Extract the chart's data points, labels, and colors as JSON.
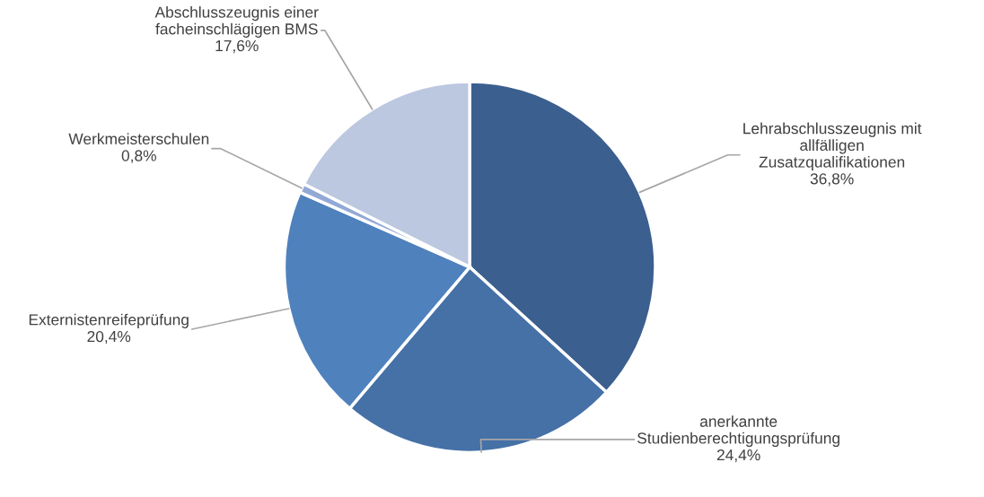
{
  "chart_data": {
    "type": "pie",
    "categories": [
      "Lehrabschlusszeugnis mit\nallfälligen\nZusatzqualifikationen",
      "anerkannte\nStudienberechtigungsprüfung",
      "Externistenreifeprüfung",
      "Werkmeisterschulen",
      "Abschlusszeugnis einer\nfacheinschlägigen BMS"
    ],
    "values": [
      36.8,
      24.4,
      20.4,
      0.8,
      17.6
    ],
    "value_labels": [
      "36,8%",
      "24,4%",
      "20,4%",
      "0,8%",
      "17,6%"
    ],
    "colors": [
      "#3b5f8e",
      "#4571a7",
      "#4f81bd",
      "#92a9d6",
      "#bcc7e0"
    ]
  }
}
